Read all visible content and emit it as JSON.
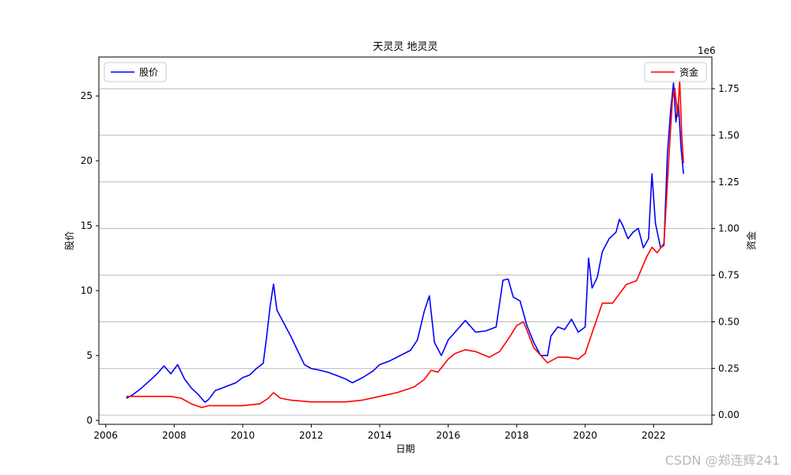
{
  "chart_data": {
    "type": "line",
    "title": "天灵灵 地灵灵",
    "xlabel": "日期",
    "ylabel_left": "股价",
    "ylabel_right": "资金",
    "right_axis_offset_text": "1e6",
    "xlim": [
      2005.8,
      2023.7
    ],
    "xticks": [
      "2006",
      "2008",
      "2010",
      "2012",
      "2014",
      "2016",
      "2018",
      "2020",
      "2022"
    ],
    "ylim_left": [
      -0.3,
      28.0
    ],
    "yticks_left": [
      "0",
      "5",
      "10",
      "15",
      "20",
      "25"
    ],
    "ylim_right": [
      -0.05,
      1.92
    ],
    "yticks_right": [
      "0.00",
      "0.25",
      "0.50",
      "0.75",
      "1.00",
      "1.25",
      "1.50",
      "1.75"
    ],
    "grid": "horizontal lines at right-axis ticks",
    "legend_left": "top-left",
    "legend_right": "top-right",
    "series": [
      {
        "name": "股价",
        "axis": "left",
        "color": "#0000ff",
        "x": [
          2006.6,
          2006.8,
          2007.0,
          2007.3,
          2007.5,
          2007.7,
          2007.9,
          2008.1,
          2008.3,
          2008.5,
          2008.7,
          2008.9,
          2009.0,
          2009.2,
          2009.4,
          2009.6,
          2009.8,
          2010.0,
          2010.2,
          2010.4,
          2010.6,
          2010.7,
          2010.8,
          2010.9,
          2011.0,
          2011.2,
          2011.4,
          2011.6,
          2011.8,
          2012.0,
          2012.2,
          2012.5,
          2012.8,
          2013.0,
          2013.2,
          2013.5,
          2013.8,
          2014.0,
          2014.3,
          2014.6,
          2014.9,
          2015.1,
          2015.3,
          2015.45,
          2015.6,
          2015.8,
          2016.0,
          2016.2,
          2016.5,
          2016.8,
          2017.1,
          2017.4,
          2017.6,
          2017.75,
          2017.9,
          2018.1,
          2018.3,
          2018.5,
          2018.7,
          2018.9,
          2019.0,
          2019.2,
          2019.4,
          2019.6,
          2019.8,
          2020.0,
          2020.1,
          2020.2,
          2020.35,
          2020.5,
          2020.7,
          2020.9,
          2021.0,
          2021.1,
          2021.25,
          2021.4,
          2021.55,
          2021.7,
          2021.85,
          2021.95,
          2022.05,
          2022.2,
          2022.3,
          2022.4,
          2022.5,
          2022.58,
          2022.65,
          2022.72,
          2022.8,
          2022.87
        ],
        "values": [
          1.7,
          2.0,
          2.4,
          3.1,
          3.6,
          4.2,
          3.6,
          4.3,
          3.2,
          2.5,
          2.0,
          1.4,
          1.6,
          2.3,
          2.5,
          2.7,
          2.9,
          3.3,
          3.5,
          4.0,
          4.4,
          6.5,
          8.8,
          10.5,
          8.5,
          7.5,
          6.5,
          5.4,
          4.3,
          4.0,
          3.9,
          3.7,
          3.4,
          3.2,
          2.9,
          3.3,
          3.8,
          4.3,
          4.6,
          5.0,
          5.4,
          6.2,
          8.4,
          9.6,
          6.0,
          5.0,
          6.2,
          6.8,
          7.7,
          6.8,
          6.9,
          7.2,
          10.8,
          10.9,
          9.5,
          9.2,
          7.3,
          6.0,
          5.0,
          5.0,
          6.5,
          7.2,
          7.0,
          7.8,
          6.8,
          7.2,
          12.5,
          10.2,
          11.0,
          13.0,
          14.0,
          14.5,
          15.5,
          15.0,
          14.0,
          14.5,
          14.8,
          13.3,
          14.0,
          19.0,
          15.2,
          13.3,
          13.5,
          20.5,
          24.0,
          26.0,
          23.0,
          24.5,
          21.0,
          19.0
        ]
      },
      {
        "name": "资金",
        "axis": "right",
        "color": "#ff0000",
        "x": [
          2006.6,
          2007.0,
          2007.5,
          2007.9,
          2008.2,
          2008.5,
          2008.8,
          2009.0,
          2009.5,
          2010.0,
          2010.5,
          2010.75,
          2010.9,
          2011.1,
          2011.4,
          2012.0,
          2012.5,
          2013.0,
          2013.5,
          2014.0,
          2014.5,
          2015.0,
          2015.3,
          2015.5,
          2015.7,
          2016.0,
          2016.2,
          2016.5,
          2016.8,
          2017.2,
          2017.5,
          2017.8,
          2018.0,
          2018.2,
          2018.5,
          2018.7,
          2018.9,
          2019.2,
          2019.5,
          2019.8,
          2020.0,
          2020.2,
          2020.5,
          2020.8,
          2021.0,
          2021.2,
          2021.5,
          2021.8,
          2021.95,
          2022.1,
          2022.3,
          2022.45,
          2022.55,
          2022.62,
          2022.7,
          2022.76,
          2022.82,
          2022.87
        ],
        "values": [
          0.1,
          0.1,
          0.1,
          0.1,
          0.09,
          0.06,
          0.04,
          0.05,
          0.05,
          0.05,
          0.06,
          0.09,
          0.12,
          0.09,
          0.08,
          0.07,
          0.07,
          0.07,
          0.08,
          0.1,
          0.12,
          0.15,
          0.19,
          0.24,
          0.23,
          0.3,
          0.33,
          0.35,
          0.34,
          0.31,
          0.34,
          0.42,
          0.48,
          0.5,
          0.36,
          0.32,
          0.28,
          0.31,
          0.31,
          0.3,
          0.33,
          0.44,
          0.6,
          0.6,
          0.65,
          0.7,
          0.72,
          0.85,
          0.9,
          0.87,
          0.92,
          1.4,
          1.7,
          1.75,
          1.6,
          1.8,
          1.5,
          1.35
        ]
      }
    ]
  },
  "watermark": "CSDN @郑连辉241"
}
